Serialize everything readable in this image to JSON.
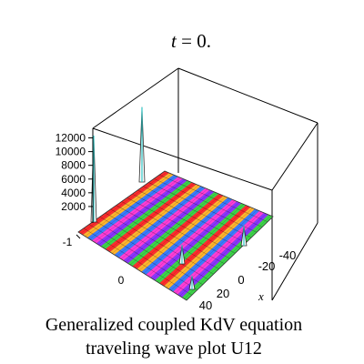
{
  "chart_data": {
    "type": "surface3d",
    "title": {
      "var": "t",
      "rest": " = 0."
    },
    "caption_lines": [
      "Generalized coupled KdV equation",
      "traveling wave plot U12"
    ],
    "xlabel": "x",
    "x_ticks": [
      -40,
      -20,
      0,
      20,
      40
    ],
    "y_ticks": [
      -1,
      0
    ],
    "z_ticks": [
      2000,
      4000,
      6000,
      8000,
      10000,
      12000
    ],
    "zlim": [
      0,
      13000
    ],
    "peaks": [
      {
        "label": "spike",
        "value": 12600
      },
      {
        "label": "spike",
        "value": 10900
      },
      {
        "label": "spike",
        "value": 2800
      },
      {
        "label": "spike",
        "value": 2000
      },
      {
        "label": "spike",
        "value": 2900
      }
    ],
    "band_colors": [
      "#ff2d2d",
      "#ffb52e",
      "#3a7dff",
      "#ff3dd8",
      "#8a35ff",
      "#3ed44a"
    ]
  }
}
